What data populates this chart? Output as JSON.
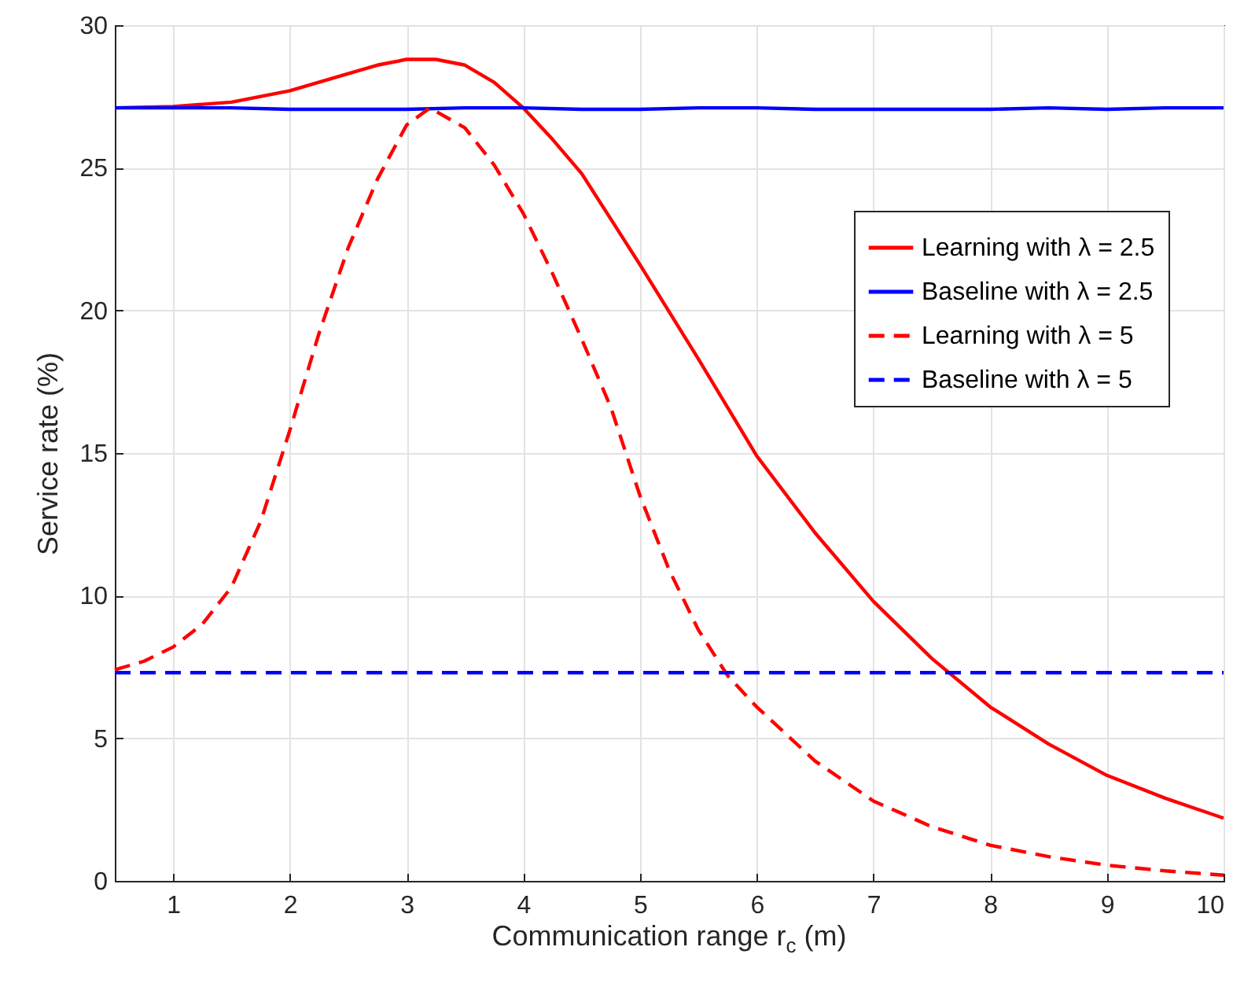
{
  "chart_data": {
    "type": "line",
    "xlabel": "Communication range  r$_{c}$ (m)",
    "ylabel": "Service rate (%)",
    "xlim": [
      0.5,
      10
    ],
    "xticks": [
      1,
      2,
      3,
      4,
      5,
      6,
      7,
      8,
      9,
      10
    ],
    "ylim": [
      0,
      30
    ],
    "yticks": [
      0,
      5,
      10,
      15,
      20,
      25,
      30
    ],
    "grid": true,
    "legend": "right",
    "marker": "none",
    "series": [
      {
        "name": "Learning with λ = 2.5",
        "color": "#ff0000",
        "line_style": "solid",
        "x": [
          0.5,
          1,
          1.5,
          2,
          2.5,
          2.75,
          3,
          3.25,
          3.5,
          3.75,
          4,
          4.25,
          4.5,
          5,
          5.5,
          6,
          6.5,
          7,
          7.5,
          8,
          8.5,
          9,
          9.5,
          10
        ],
        "values": [
          27.1,
          27.15,
          27.3,
          27.7,
          28.3,
          28.6,
          28.8,
          28.8,
          28.6,
          28.0,
          27.1,
          26.0,
          24.8,
          21.6,
          18.3,
          14.9,
          12.2,
          9.8,
          7.8,
          6.1,
          4.8,
          3.7,
          2.9,
          2.2
        ]
      },
      {
        "name": "Baseline with λ = 2.5",
        "color": "#0000ff",
        "line_style": "solid",
        "x": [
          0.5,
          1,
          1.5,
          2,
          2.5,
          3,
          3.5,
          4,
          4.5,
          5,
          5.5,
          6,
          6.5,
          7,
          7.5,
          8,
          8.5,
          9,
          9.5,
          10
        ],
        "values": [
          27.1,
          27.1,
          27.1,
          27.05,
          27.05,
          27.05,
          27.1,
          27.1,
          27.05,
          27.05,
          27.1,
          27.1,
          27.05,
          27.05,
          27.05,
          27.05,
          27.1,
          27.05,
          27.1,
          27.1
        ]
      },
      {
        "name": "Learning with λ = 5",
        "color": "#ff0000",
        "line_style": "dashed",
        "x": [
          0.5,
          0.75,
          1,
          1.25,
          1.5,
          1.75,
          2,
          2.25,
          2.5,
          2.75,
          3,
          3.2,
          3.5,
          3.75,
          4,
          4.25,
          4.5,
          4.75,
          5,
          5.25,
          5.5,
          5.75,
          6,
          6.5,
          7,
          7.5,
          8,
          8.5,
          9,
          9.5,
          10
        ],
        "values": [
          7.4,
          7.7,
          8.2,
          9.0,
          10.3,
          12.6,
          15.8,
          19.2,
          22.2,
          24.6,
          26.5,
          27.1,
          26.4,
          25.1,
          23.4,
          21.3,
          19.0,
          16.6,
          13.5,
          10.9,
          8.8,
          7.2,
          6.1,
          4.2,
          2.8,
          1.9,
          1.25,
          0.85,
          0.55,
          0.35,
          0.2
        ]
      },
      {
        "name": "Baseline with λ = 5",
        "color": "#0000ff",
        "line_style": "dashed",
        "x": [
          0.5,
          1,
          2,
          3,
          4,
          5,
          6,
          7,
          8,
          9,
          10
        ],
        "values": [
          7.3,
          7.3,
          7.3,
          7.3,
          7.3,
          7.3,
          7.3,
          7.3,
          7.3,
          7.3,
          7.3
        ]
      }
    ]
  }
}
